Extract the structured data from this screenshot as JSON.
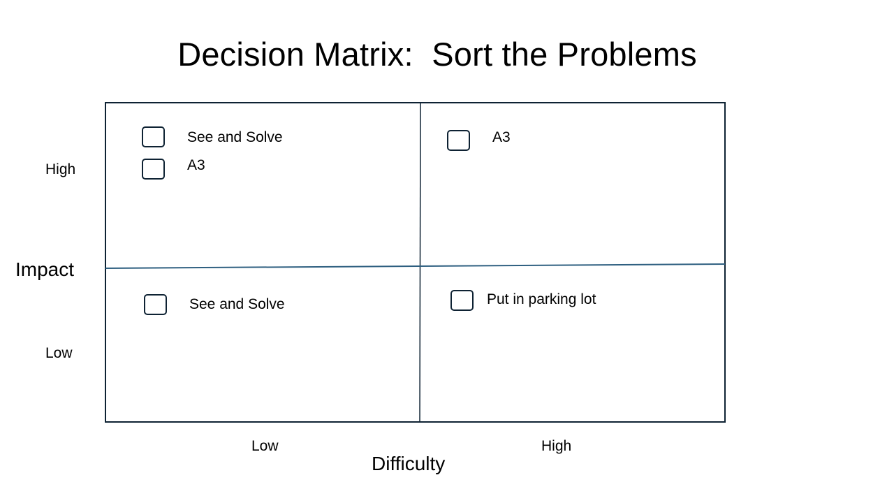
{
  "title": "Decision Matrix:  Sort the Problems",
  "axes": {
    "y_title": "Impact",
    "y_high": "High",
    "y_low": "Low",
    "x_title": "Difficulty",
    "x_low": "Low",
    "x_high": "High"
  },
  "quadrants": {
    "high_impact_low_difficulty": {
      "items": [
        "See and Solve",
        "A3"
      ]
    },
    "high_impact_high_difficulty": {
      "items": [
        "A3"
      ]
    },
    "low_impact_low_difficulty": {
      "items": [
        "See and Solve"
      ]
    },
    "low_impact_high_difficulty": {
      "items": [
        "Put in parking lot"
      ]
    }
  },
  "colors": {
    "frame": "#0e2233",
    "horizontal_divider": "#2e5f80",
    "checkbox_border": "#0e2233"
  }
}
